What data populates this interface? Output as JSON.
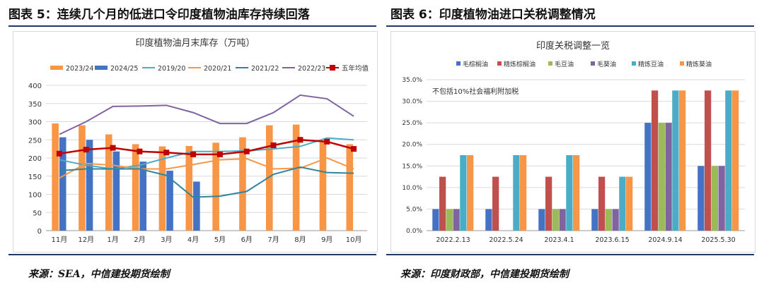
{
  "left": {
    "heading": "图表 5：连续几个月的低进口令印度植物油库存持续回落",
    "source": "来源：SEA，中信建投期货绘制"
  },
  "right": {
    "heading": "图表 6：印度植物油进口关税调整情况",
    "source": "来源：印度财政部，中信建投期货绘制"
  },
  "chart_data": [
    {
      "type": "bar",
      "title": "印度植物油月末库存（万吨）",
      "categories": [
        "11月",
        "12月",
        "1月",
        "2月",
        "3月",
        "4月",
        "5月",
        "6月",
        "7月",
        "8月",
        "9月",
        "10月"
      ],
      "ylim": [
        0,
        400
      ],
      "yticks": [
        0,
        50,
        100,
        150,
        200,
        250,
        300,
        350,
        400
      ],
      "grid": true,
      "legend_position": "top",
      "bar_series": [
        {
          "name": "2023/24",
          "color": "#f79646",
          "values": [
            295,
            290,
            265,
            238,
            232,
            233,
            242,
            257,
            290,
            292,
            248,
            238
          ]
        },
        {
          "name": "2024/25",
          "color": "#4472c4",
          "values": [
            257,
            250,
            218,
            190,
            165,
            135,
            null,
            null,
            null,
            null,
            null,
            null
          ]
        }
      ],
      "line_series": [
        {
          "name": "2019/20",
          "color": "#4bacc6",
          "values": [
            195,
            180,
            170,
            180,
            200,
            218,
            218,
            220,
            225,
            232,
            255,
            250
          ],
          "marker": false
        },
        {
          "name": "2020/21",
          "color": "#f79646",
          "values": [
            145,
            185,
            180,
            170,
            170,
            182,
            195,
            198,
            170,
            172,
            200,
            170
          ],
          "marker": false
        },
        {
          "name": "2021/22",
          "color": "#31859c",
          "values": [
            165,
            170,
            170,
            170,
            152,
            92,
            95,
            108,
            155,
            175,
            160,
            158
          ],
          "marker": false
        },
        {
          "name": "2022/23",
          "color": "#8064a2",
          "values": [
            265,
            300,
            342,
            343,
            345,
            325,
            295,
            295,
            325,
            373,
            363,
            315
          ],
          "marker": false
        },
        {
          "name": "五年均值",
          "color": "#c00000",
          "values": [
            212,
            223,
            228,
            218,
            215,
            210,
            210,
            218,
            235,
            250,
            245,
            225
          ],
          "marker": true
        }
      ]
    },
    {
      "type": "bar",
      "title": "印度关税调整一览",
      "categories": [
        "2022.2.13",
        "2022.5.24",
        "2023.4.1",
        "2023.6.15",
        "2024.9.14",
        "2025.5.30"
      ],
      "ylim": [
        0,
        0.35
      ],
      "yticks": [
        "0.0%",
        "5.0%",
        "10.0%",
        "15.0%",
        "20.0%",
        "25.0%",
        "30.0%",
        "35.0%"
      ],
      "grid": true,
      "legend_position": "top",
      "annotation": "不包括10%社会福利附加税",
      "series": [
        {
          "name": "毛棕榈油",
          "color": "#4472c4",
          "values": [
            0.05,
            0.05,
            0.05,
            0.05,
            0.25,
            0.15
          ]
        },
        {
          "name": "精炼棕榈油",
          "color": "#c0504d",
          "values": [
            0.125,
            0.125,
            0.125,
            0.125,
            0.325,
            0.325
          ]
        },
        {
          "name": "毛豆油",
          "color": "#9bbb59",
          "values": [
            0.05,
            0,
            0.05,
            0.05,
            0.25,
            0.15
          ]
        },
        {
          "name": "毛葵油",
          "color": "#8064a2",
          "values": [
            0.05,
            0,
            0.05,
            0.05,
            0.25,
            0.15
          ]
        },
        {
          "name": "精炼豆油",
          "color": "#4bacc6",
          "values": [
            0.175,
            0.175,
            0.175,
            0.125,
            0.325,
            0.325
          ]
        },
        {
          "name": "精炼葵油",
          "color": "#f79646",
          "values": [
            0.175,
            0.175,
            0.175,
            0.125,
            0.325,
            0.325
          ]
        }
      ]
    }
  ]
}
